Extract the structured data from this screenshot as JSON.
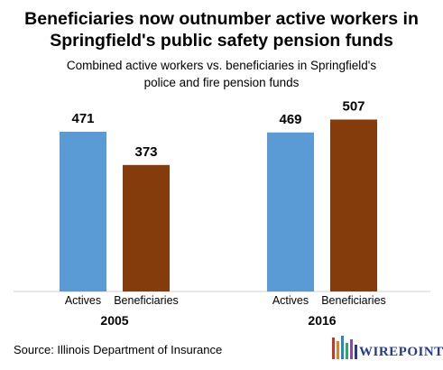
{
  "header": {
    "title_line1": "Beneficiaries now outnumber active workers in",
    "title_line2": "Springfield's public safety pension funds",
    "subtitle_line1": "Combined active workers vs. beneficiaries in Springfield's",
    "subtitle_line2": "police and fire pension funds"
  },
  "footer": {
    "source": "Source: Illinois Department of Insurance",
    "logo_text": "WIREPOINTS",
    "logo_icon": "wirepoints-w-logo"
  },
  "chart_data": {
    "type": "bar",
    "title": "Beneficiaries now outnumber active workers in Springfield's public safety pension funds",
    "subtitle": "Combined active workers vs. beneficiaries in Springfield's police and fire pension funds",
    "groups": [
      "2005",
      "2016"
    ],
    "categories": [
      "Actives",
      "Beneficiaries"
    ],
    "series": [
      {
        "category": "Actives",
        "color": "#5b9bd5",
        "values": [
          471,
          469
        ]
      },
      {
        "category": "Beneficiaries",
        "color": "#843c0c",
        "values": [
          373,
          507
        ]
      }
    ],
    "ylim": [
      0,
      600
    ],
    "grid": false,
    "data_labels": true
  }
}
